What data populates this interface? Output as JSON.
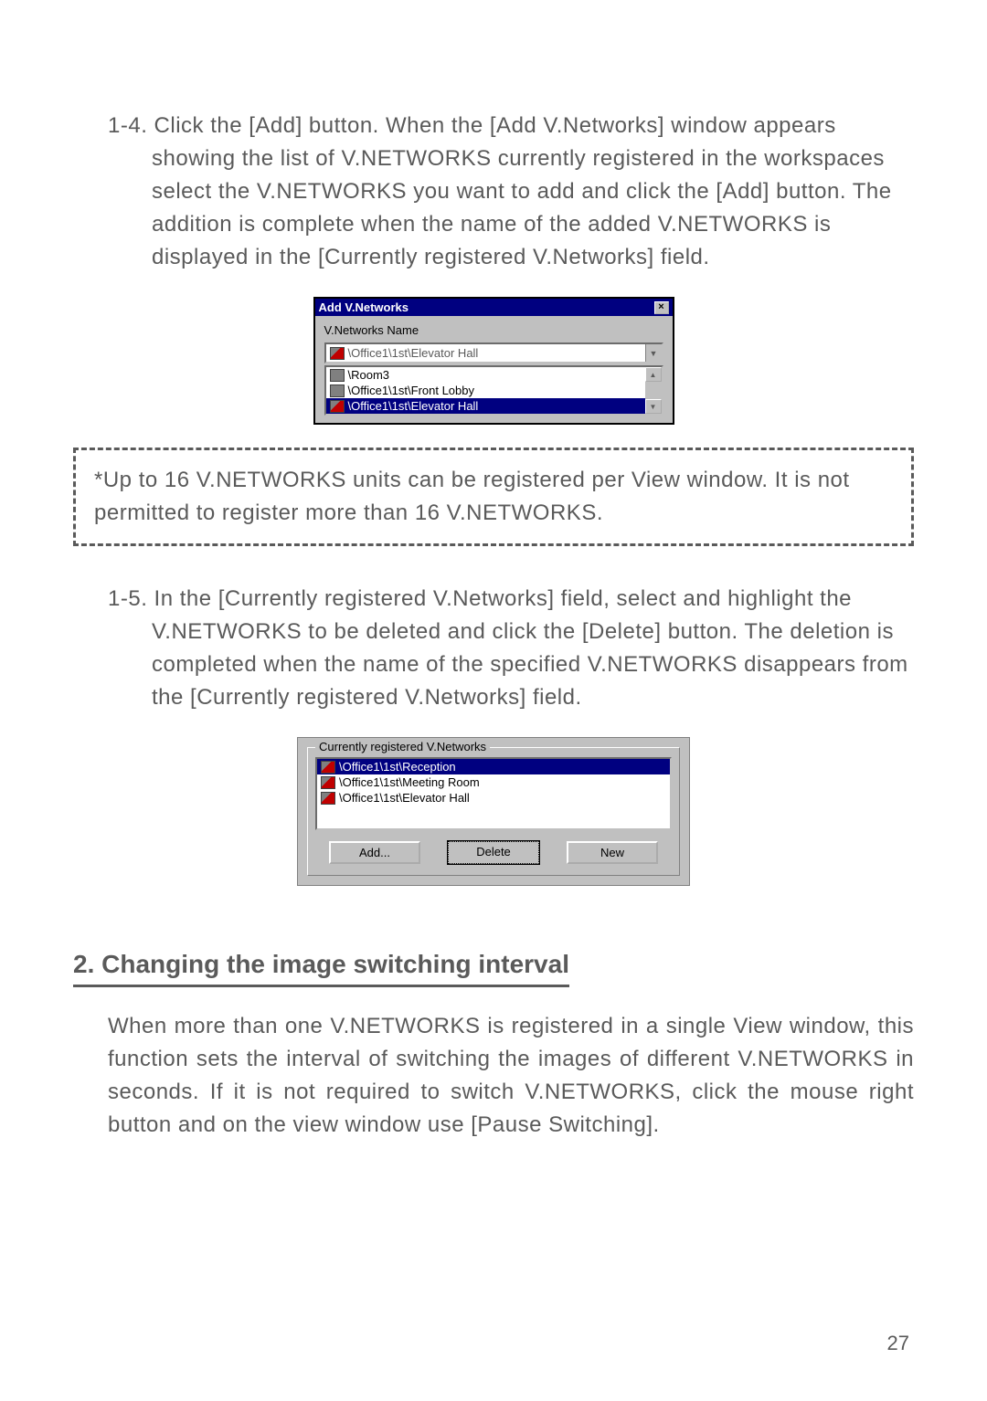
{
  "colors": {
    "text": "#5a5a5a",
    "background": "#ffffff",
    "border": "#5a5a5a",
    "win_bg": "#c0c0c0",
    "win_titlebar": "#000080",
    "win_selected": "#000080"
  },
  "typography": {
    "body_fontsize": 24,
    "heading_fontsize": 28,
    "win_fontsize": 13
  },
  "step1_4": {
    "number": "1-4.",
    "text": "Click the [Add] button. When the [Add V.Networks] window appears showing the list of V.NETWORKS currently registered in the workspaces select the V.NETWORKS you want to add and click the [Add] button. The addition is complete when the name of the added V.NETWORKS is displayed in the [Currently registered V.Networks] field."
  },
  "screenshot1": {
    "title": "Add V.Networks",
    "label": "V.Networks Name",
    "dropdown_value": "\\Office1\\1st\\Elevator Hall",
    "list_items": [
      {
        "label": "\\Room3",
        "selected": false,
        "icon_grey": true
      },
      {
        "label": "\\Office1\\1st\\Front Lobby",
        "selected": false,
        "icon_grey": true
      },
      {
        "label": "\\Office1\\1st\\Elevator Hall",
        "selected": true,
        "icon_grey": false
      }
    ]
  },
  "note_box": {
    "text": "*Up to 16 V.NETWORKS units can be registered per View window. It is not permitted to register more than 16 V.NETWORKS."
  },
  "step1_5": {
    "number": "1-5.",
    "text": "In the [Currently registered V.Networks] field, select and highlight the V.NETWORKS to be deleted and click the [Delete] button. The deletion is completed when the name of the specified V.NETWORKS disappears from the [Currently registered V.Networks] field."
  },
  "screenshot2": {
    "legend": "Currently registered V.Networks",
    "list_items": [
      {
        "label": "\\Office1\\1st\\Reception",
        "selected": true
      },
      {
        "label": "\\Office1\\1st\\Meeting Room",
        "selected": false
      },
      {
        "label": "\\Office1\\1st\\Elevator Hall",
        "selected": false
      }
    ],
    "buttons": {
      "add": "Add...",
      "delete": "Delete",
      "new": "New"
    }
  },
  "section2": {
    "heading": "2. Changing the image switching interval",
    "body": "When more than one V.NETWORKS is registered in a single View window, this function sets the interval of switching the images of different V.NETWORKS in seconds. If it is not required to switch V.NETWORKS, click the mouse right button and on the view window use [Pause Switching]."
  },
  "page_number": "27"
}
